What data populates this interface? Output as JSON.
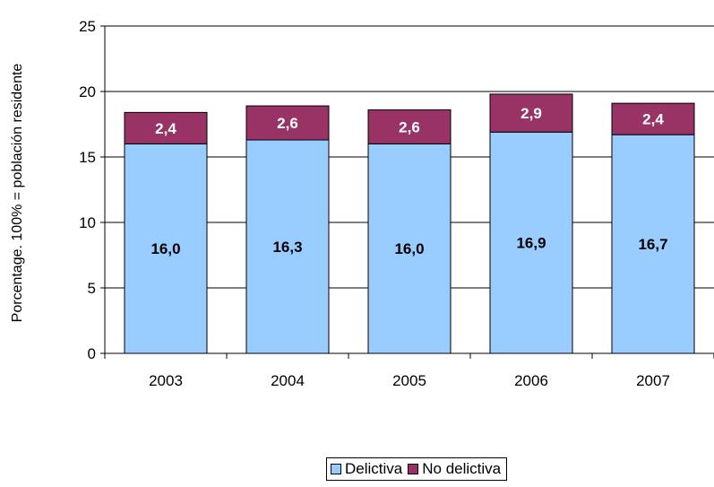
{
  "chart_data": {
    "type": "bar",
    "stacked": true,
    "categories": [
      "2003",
      "2004",
      "2005",
      "2006",
      "2007"
    ],
    "series": [
      {
        "name": "Delictiva",
        "values": [
          16.0,
          16.3,
          16.0,
          16.9,
          16.7
        ],
        "labels": [
          "16,0",
          "16,3",
          "16,0",
          "16,9",
          "16,7"
        ],
        "color": "#99CCFF",
        "label_color": "#000000"
      },
      {
        "name": "No delictiva",
        "values": [
          2.4,
          2.6,
          2.6,
          2.9,
          2.4
        ],
        "labels": [
          "2,4",
          "2,6",
          "2,6",
          "2,9",
          "2,4"
        ],
        "color": "#993366",
        "label_color": "#FFFFFF"
      }
    ],
    "ylabel": "Porcentage. 100% = población residente",
    "ylim": [
      0,
      25
    ],
    "yticks": [
      0,
      5,
      10,
      15,
      20,
      25
    ],
    "grid": true,
    "legend_position": "bottom"
  }
}
